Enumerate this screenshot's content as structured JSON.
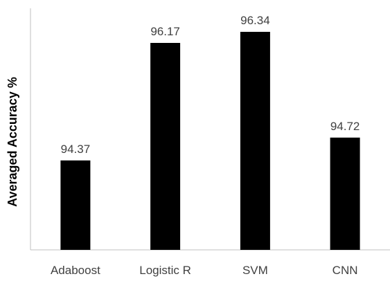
{
  "chart_data": {
    "type": "bar",
    "categories": [
      "Adaboost",
      "Logistic R",
      "SVM",
      "CNN"
    ],
    "values": [
      94.37,
      96.17,
      96.34,
      94.72
    ],
    "data_labels": [
      "94.37",
      "96.17",
      "96.34",
      "94.72"
    ],
    "title": "",
    "xlabel": "",
    "ylabel": "Averaged Accuracy %",
    "ylim": [
      93.0,
      96.7
    ],
    "grid": false,
    "legend": "none",
    "bar_color": "#000000",
    "axis_color": "#bfbfbf",
    "label_color": "#404040"
  }
}
